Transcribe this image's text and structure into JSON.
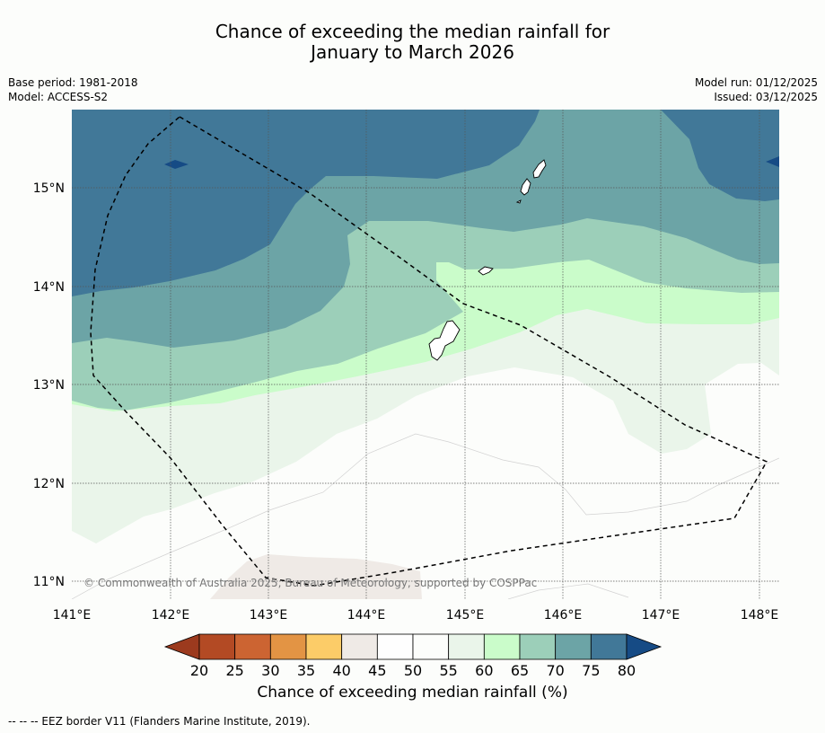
{
  "title": {
    "line1": "Chance of exceeding the median rainfall for",
    "line2": "January to March 2026"
  },
  "meta_left": {
    "base_period": "Base period: 1981-2018",
    "model": "Model: ACCESS-S2"
  },
  "meta_right": {
    "model_run": "Model run: 01/12/2025",
    "issued": "Issued: 03/12/2025"
  },
  "map": {
    "lon_ticks": [
      "141°E",
      "142°E",
      "143°E",
      "144°E",
      "145°E",
      "146°E",
      "147°E",
      "148°E"
    ],
    "lat_ticks": [
      "15°N",
      "14°N",
      "13°N",
      "12°N",
      "11°N"
    ],
    "copyright": "© Commonwealth of Australia 2025, Bureau of Meteorology, supported by COSPPac"
  },
  "colorbar": {
    "ticks": [
      "20",
      "25",
      "30",
      "35",
      "40",
      "45",
      "50",
      "55",
      "60",
      "65",
      "70",
      "75",
      "80"
    ],
    "label": "Chance of exceeding median rainfall (%)",
    "colors": [
      "#9c3a1e",
      "#b34a24",
      "#cc6432",
      "#e39444",
      "#fccc68",
      "#efeae6",
      "#fefefe",
      "#fcfdfb",
      "#eaf5ea",
      "#cafcca",
      "#9ccfb9",
      "#6ca4a6",
      "#417898",
      "#164b85"
    ]
  },
  "footer": {
    "legend_line": "--  --  -- EEZ border V11 (Flanders Marine Institute, 2019)."
  }
}
